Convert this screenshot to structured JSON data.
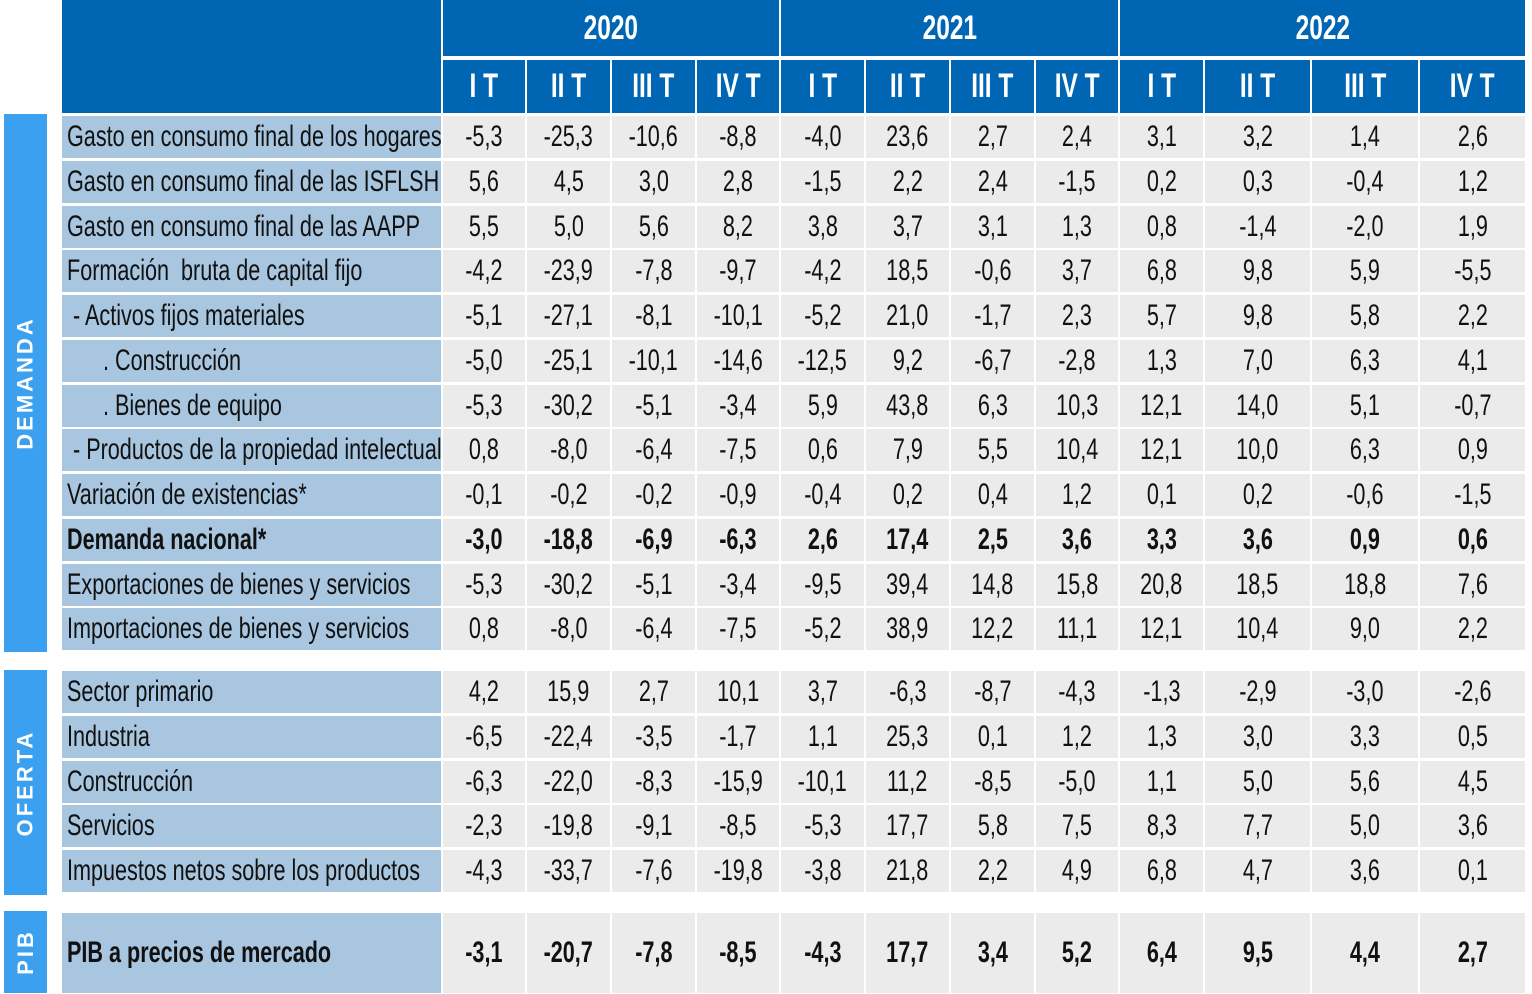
{
  "header": {
    "years": [
      "2020",
      "2021",
      "2022"
    ],
    "quarters": [
      "I T",
      "II T",
      "III T",
      "IV T",
      "I T",
      "II T",
      "III T",
      "IV T",
      "I T",
      "II T",
      "III T",
      "IV T"
    ]
  },
  "sections": [
    {
      "name": "DEMANDA",
      "rows": [
        {
          "label": "Gasto en consumo final de los hogares",
          "values": [
            "-5,3",
            "-25,3",
            "-10,6",
            "-8,8",
            "-4,0",
            "23,6",
            "2,7",
            "2,4",
            "3,1",
            "3,2",
            "1,4",
            "2,6"
          ]
        },
        {
          "label": "Gasto en consumo final de las ISFLSH",
          "values": [
            "5,6",
            "4,5",
            "3,0",
            "2,8",
            "-1,5",
            "2,2",
            "2,4",
            "-1,5",
            "0,2",
            "0,3",
            "-0,4",
            "1,2"
          ]
        },
        {
          "label": "Gasto en consumo final de las AAPP",
          "values": [
            "5,5",
            "5,0",
            "5,6",
            "8,2",
            "3,8",
            "3,7",
            "3,1",
            "1,3",
            "0,8",
            "-1,4",
            "-2,0",
            "1,9"
          ]
        },
        {
          "label": "Formación  bruta de capital fijo",
          "values": [
            "-4,2",
            "-23,9",
            "-7,8",
            "-9,7",
            "-4,2",
            "18,5",
            "-0,6",
            "3,7",
            "6,8",
            "9,8",
            "5,9",
            "-5,5"
          ]
        },
        {
          "label": " - Activos fijos materiales",
          "values": [
            "-5,1",
            "-27,1",
            "-8,1",
            "-10,1",
            "-5,2",
            "21,0",
            "-1,7",
            "2,3",
            "5,7",
            "9,8",
            "5,8",
            "2,2"
          ]
        },
        {
          "label": "      . Construcción",
          "values": [
            "-5,0",
            "-25,1",
            "-10,1",
            "-14,6",
            "-12,5",
            "9,2",
            "-6,7",
            "-2,8",
            "1,3",
            "7,0",
            "6,3",
            "4,1"
          ]
        },
        {
          "label": "      . Bienes de equipo",
          "values": [
            "-5,3",
            "-30,2",
            "-5,1",
            "-3,4",
            "5,9",
            "43,8",
            "6,3",
            "10,3",
            "12,1",
            "14,0",
            "5,1",
            "-0,7"
          ]
        },
        {
          "label": " - Productos de la propiedad intelectual",
          "values": [
            "0,8",
            "-8,0",
            "-6,4",
            "-7,5",
            "0,6",
            "7,9",
            "5,5",
            "10,4",
            "12,1",
            "10,0",
            "6,3",
            "0,9"
          ]
        },
        {
          "label": "Variación de existencias*",
          "values": [
            "-0,1",
            "-0,2",
            "-0,2",
            "-0,9",
            "-0,4",
            "0,2",
            "0,4",
            "1,2",
            "0,1",
            "0,2",
            "-0,6",
            "-1,5"
          ]
        },
        {
          "label": "Demanda nacional*",
          "bold": true,
          "values": [
            "-3,0",
            "-18,8",
            "-6,9",
            "-6,3",
            "2,6",
            "17,4",
            "2,5",
            "3,6",
            "3,3",
            "3,6",
            "0,9",
            "0,6"
          ]
        },
        {
          "label": "Exportaciones de bienes y servicios",
          "values": [
            "-5,3",
            "-30,2",
            "-5,1",
            "-3,4",
            "-9,5",
            "39,4",
            "14,8",
            "15,8",
            "20,8",
            "18,5",
            "18,8",
            "7,6"
          ]
        },
        {
          "label": "Importaciones de bienes y servicios",
          "values": [
            "0,8",
            "-8,0",
            "-6,4",
            "-7,5",
            "-5,2",
            "38,9",
            "12,2",
            "11,1",
            "12,1",
            "10,4",
            "9,0",
            "2,2"
          ]
        }
      ]
    },
    {
      "name": "OFERTA",
      "rows": [
        {
          "label": "Sector primario",
          "values": [
            "4,2",
            "15,9",
            "2,7",
            "10,1",
            "3,7",
            "-6,3",
            "-8,7",
            "-4,3",
            "-1,3",
            "-2,9",
            "-3,0",
            "-2,6"
          ]
        },
        {
          "label": "Industria",
          "values": [
            "-6,5",
            "-22,4",
            "-3,5",
            "-1,7",
            "1,1",
            "25,3",
            "0,1",
            "1,2",
            "1,3",
            "3,0",
            "3,3",
            "0,5"
          ]
        },
        {
          "label": "Construcción",
          "values": [
            "-6,3",
            "-22,0",
            "-8,3",
            "-15,9",
            "-10,1",
            "11,2",
            "-8,5",
            "-5,0",
            "1,1",
            "5,0",
            "5,6",
            "4,5"
          ]
        },
        {
          "label": "Servicios",
          "values": [
            "-2,3",
            "-19,8",
            "-9,1",
            "-8,5",
            "-5,3",
            "17,7",
            "5,8",
            "7,5",
            "8,3",
            "7,7",
            "5,0",
            "3,6"
          ]
        },
        {
          "label": "Impuestos netos sobre los productos",
          "values": [
            "-4,3",
            "-33,7",
            "-7,6",
            "-19,8",
            "-3,8",
            "21,8",
            "2,2",
            "4,9",
            "6,8",
            "4,7",
            "3,6",
            "0,1"
          ]
        }
      ]
    },
    {
      "name": "PIB",
      "rows": [
        {
          "label": "PIB a precios de mercado",
          "bold": true,
          "values": [
            "-3,1",
            "-20,7",
            "-7,8",
            "-8,5",
            "-4,3",
            "17,7",
            "3,4",
            "5,2",
            "6,4",
            "9,5",
            "4,4",
            "2,7"
          ]
        }
      ]
    }
  ]
}
